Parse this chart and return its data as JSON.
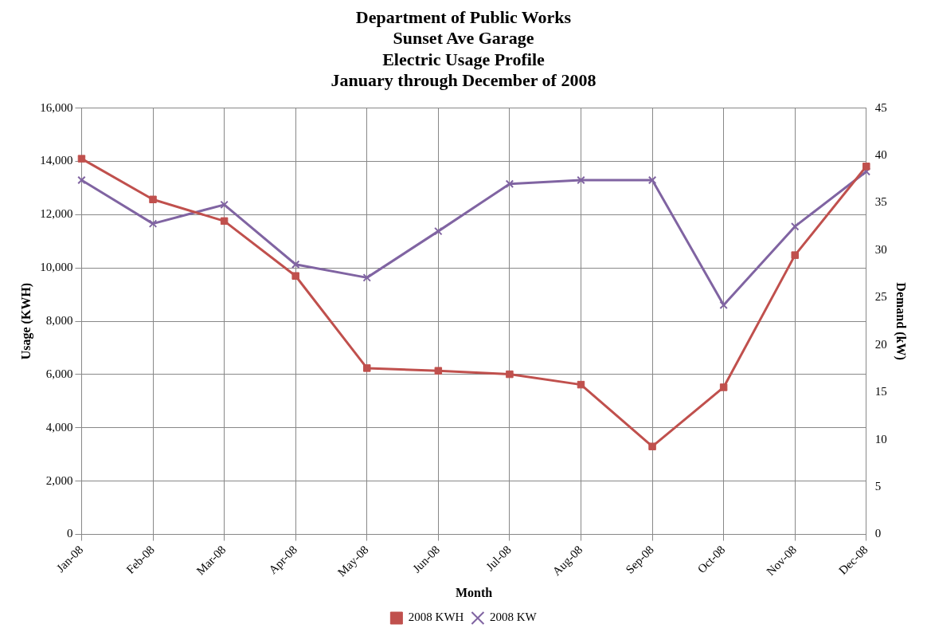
{
  "chart_data": {
    "type": "line",
    "title": "Department of Public Works\nSunset Ave Garage\nElectric Usage Profile\nJanuary through December of 2008",
    "xlabel": "Month",
    "ylabel": "Usage (KWH)",
    "y2label": "Demand (kW)",
    "categories": [
      "Jan-08",
      "Feb-08",
      "Mar-08",
      "Apr-08",
      "May-08",
      "Jun-08",
      "Jul-08",
      "Aug-08",
      "Sep-08",
      "Oct-08",
      "Nov-08",
      "Dec-08"
    ],
    "series": [
      {
        "name": "2008 KWH",
        "color": "#c0504d",
        "marker": "square",
        "values": [
          14100,
          12570,
          11760,
          9700,
          6240,
          6140,
          6010,
          5620,
          3300,
          5520,
          10480,
          13810
        ]
      },
      {
        "name": "2008 KW",
        "color": "#8064a2",
        "marker": "cross",
        "axis": "y2",
        "values": [
          37.4,
          32.8,
          34.8,
          28.5,
          27.1,
          32.0,
          37.0,
          37.4,
          37.4,
          24.2,
          32.5,
          38.3
        ]
      }
    ],
    "ylim": [
      0,
      16000
    ],
    "yticks": [
      {
        "value": 0,
        "label": "0"
      },
      {
        "value": 2000,
        "label": "2,000"
      },
      {
        "value": 4000,
        "label": "4,000"
      },
      {
        "value": 6000,
        "label": "6,000"
      },
      {
        "value": 8000,
        "label": "8,000"
      },
      {
        "value": 10000,
        "label": "10,000"
      },
      {
        "value": 12000,
        "label": "12,000"
      },
      {
        "value": 14000,
        "label": "14,000"
      },
      {
        "value": 16000,
        "label": "16,000"
      }
    ],
    "y2lim": [
      0,
      45
    ],
    "y2ticks": [
      0,
      5,
      10,
      15,
      20,
      25,
      30,
      35,
      40,
      45
    ],
    "grid": true,
    "legend": "bottom",
    "line_style": "solid"
  }
}
